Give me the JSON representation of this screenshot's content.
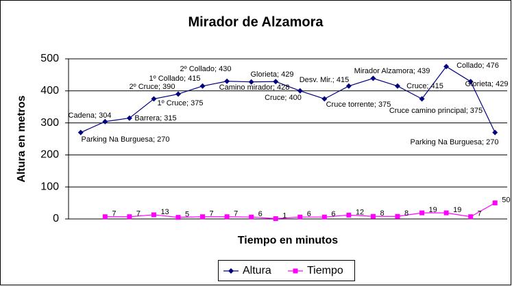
{
  "chart_data": {
    "type": "line",
    "title": "Mirador de Alzamora",
    "x_label": "Tiempo en minutos",
    "y_label": "Altura en metros",
    "categories": [
      null,
      null,
      null,
      null,
      null,
      null,
      null,
      null,
      null,
      null,
      null,
      null,
      null,
      null,
      null,
      null,
      null,
      null
    ],
    "series": [
      {
        "name": "Altura",
        "color": "#000080",
        "marker": "diamond",
        "values": [
          270,
          304,
          315,
          375,
          390,
          415,
          430,
          428,
          429,
          400,
          375,
          415,
          439,
          415,
          375,
          476,
          429,
          270
        ],
        "value_labels": [
          "Parking Na Burguesa; 270",
          "Cadena; 304",
          "Barrera; 315",
          "1º Cruce; 375",
          "2º Cruce; 390",
          "1º Collado; 415",
          "2º Collado; 430",
          "Camino mirador; 428",
          "Glorieta; 429",
          "Cruce; 400",
          "Cruce torrente; 375",
          "Desv. Mir.; 415",
          "Mirador Alzamora; 439",
          "Cruce; 415",
          "Cruce camino principal; 375",
          "Collado; 476",
          "Glorieta; 429",
          "Parking Na Burguesa; 270"
        ]
      },
      {
        "name": "Tiempo",
        "color": "#ff00ff",
        "marker": "square",
        "values": [
          null,
          7,
          7,
          13,
          5,
          7,
          7,
          6,
          1,
          6,
          6,
          12,
          8,
          8,
          19,
          19,
          7,
          50
        ]
      }
    ],
    "ylim": [
      0,
      500
    ],
    "yticks": [
      0,
      100,
      200,
      300,
      400,
      500
    ],
    "grid": true,
    "legend": "bottom"
  }
}
